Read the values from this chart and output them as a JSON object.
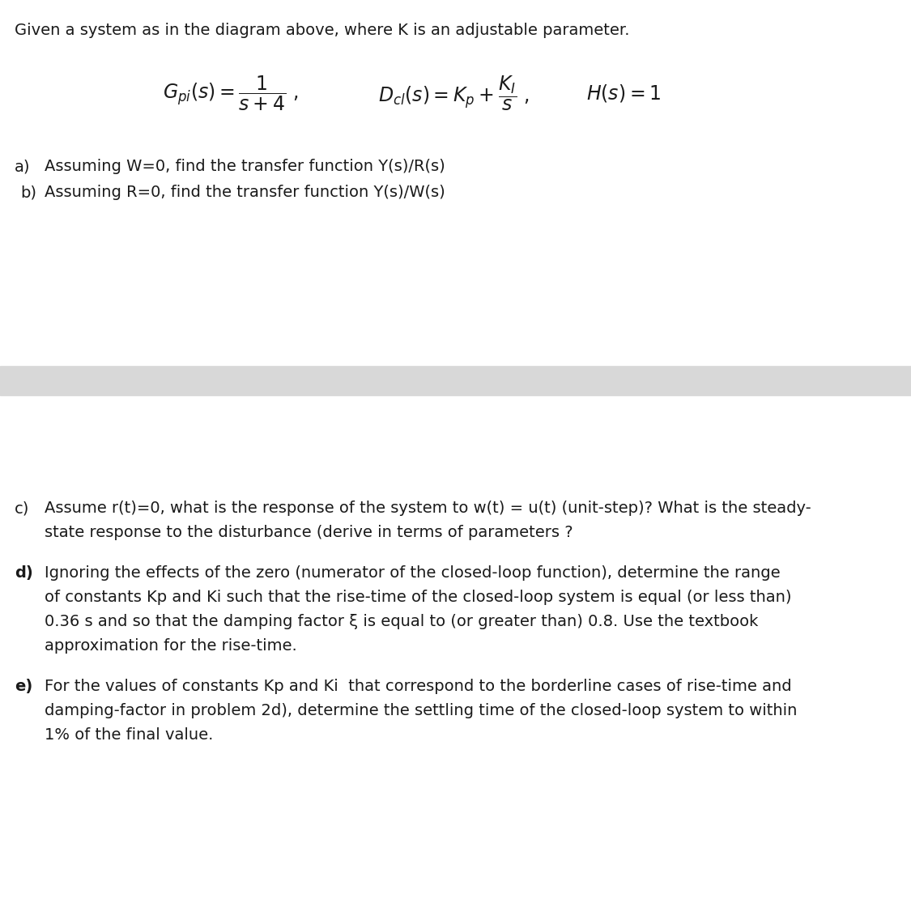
{
  "bg_color": "#ffffff",
  "separator_color": "#d8d8d8",
  "text_color": "#1a1a1a",
  "intro_text": "Given a system as in the diagram above, where K is an adjustable parameter.",
  "items_cde": [
    {
      "label": "c)",
      "label_bold": false,
      "lines": [
        "Assume r(t)=0, what is the response of the system to w(t) = u(t) (unit-step)? What is the steady-",
        "state response to the disturbance (derive in terms of parameters ?"
      ]
    },
    {
      "label": "d)",
      "label_bold": true,
      "lines": [
        "Ignoring the effects of the zero (numerator of the closed-loop function), determine the range",
        "of constants Kp and Ki such that the rise-time of the closed-loop system is equal (or less than)",
        "0.36 s and so that the damping factor ξ is equal to (or greater than) 0.8. Use the textbook",
        "approximation for the rise-time."
      ]
    },
    {
      "label": "e)",
      "label_bold": true,
      "lines": [
        "For the values of constants Kp and Ki  that correspond to the borderline cases of rise-time and",
        "damping-factor in problem 2d), determine the settling time of the closed-loop system to within",
        "1% of the final value."
      ]
    }
  ]
}
